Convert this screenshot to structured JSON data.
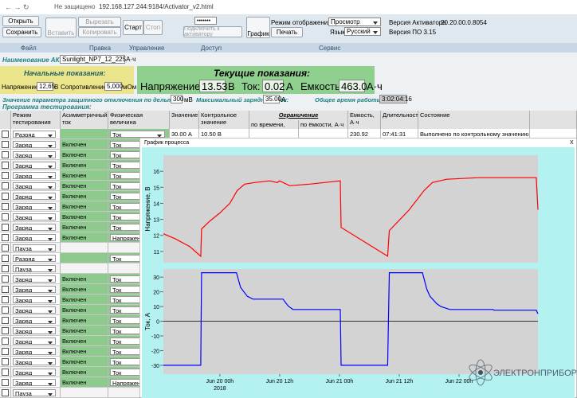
{
  "browser": {
    "security": "Не защищено",
    "url": "192.168.127.244:9184/Activator_v2.html"
  },
  "toolbar": {
    "open": "Открыть",
    "save": "Сохранить",
    "paste": "Вставить",
    "cut": "Вырезать",
    "copy": "Копировать",
    "start": "Старт",
    "stop": "Стоп",
    "password_mask": "•••••••",
    "connect": "Подключить к активатору",
    "graph": "График",
    "display_mode_label": "Режим отображения:",
    "display_mode": "Просмотр",
    "print": "Печать",
    "language_label": "Язык:",
    "language": "Русский",
    "activator_version_label": "Версия Активатора",
    "activator_version": "20.20.00.0.8054",
    "software_version": "Версия ПО 3.15"
  },
  "groups": [
    "Файл",
    "Правка",
    "Управление",
    "Доступ",
    "Сервис"
  ],
  "battery": {
    "label": "Наименование АКБ:",
    "value": "Sunlight_NP7_12_225А·ч"
  },
  "initial": {
    "title": "Начальные показания:",
    "voltage_label": "Напряжение:",
    "voltage": "12,65",
    "voltage_unit": "В",
    "resistance_label": "Сопротивление:",
    "resistance": "5,000",
    "resistance_unit": "мОм"
  },
  "current": {
    "title": "Текущие показания:",
    "voltage_label": "Напряжение:",
    "voltage": "13.53",
    "voltage_unit": "В",
    "current_label": "Ток:",
    "current": "0.02",
    "current_unit": "А",
    "capacity_label": "Емкость:",
    "capacity": "463.0",
    "capacity_unit": "А·ч"
  },
  "params": {
    "delta_v_label": "Значение параметра защитного отключения по дельта V:",
    "delta_v": "300",
    "delta_v_unit": "мВ",
    "max_current_label": "Максимальный зарядный ток:",
    "max_current": "35.00",
    "max_current_unit": "А",
    "total_time_label": "Общее время работы:",
    "total_time": "3:02:04:16"
  },
  "program_title": "Программа тестирования:",
  "table": {
    "headers": {
      "mode": "Режим тестирования",
      "asym": "Асимметричный ток",
      "quantity": "Физическая величина",
      "value": "Значение",
      "control": "Контрольное значение",
      "capacity": "Емкость, А·ч",
      "duration": "Длительность",
      "state": "Состояние"
    },
    "limit_header": "Ограничение",
    "limit_sub": [
      "по времени, мин.",
      "по ёмкости, А·ч"
    ],
    "rows": [
      {
        "mode": "Разряд",
        "quantity": "Ток",
        "value": "30.00 А",
        "control": "10.50 В",
        "capacity": "230.92",
        "duration": "07:41:31",
        "state": "Выполнено по контрольному значению"
      },
      {
        "mode": "Заряд",
        "asym": "Включен",
        "quantity": "Ток"
      },
      {
        "mode": "Заряд",
        "asym": "Включен",
        "quantity": "Ток"
      },
      {
        "mode": "Заряд",
        "asym": "Включен",
        "quantity": "Ток"
      },
      {
        "mode": "Заряд",
        "asym": "Включен",
        "quantity": "Ток"
      },
      {
        "mode": "Заряд",
        "asym": "Включен",
        "quantity": "Ток"
      },
      {
        "mode": "Заряд",
        "asym": "Включен",
        "quantity": "Ток"
      },
      {
        "mode": "Заряд",
        "asym": "Включен",
        "quantity": "Ток"
      },
      {
        "mode": "Заряд",
        "asym": "Включен",
        "quantity": "Ток"
      },
      {
        "mode": "Заряд",
        "asym": "Включен",
        "quantity": "Ток"
      },
      {
        "mode": "Заряд",
        "asym": "Включен",
        "quantity": "Напряжение"
      },
      {
        "mode": "Пауза"
      },
      {
        "mode": "Разряд",
        "quantity": "Ток"
      },
      {
        "mode": "Пауза"
      },
      {
        "mode": "Заряд",
        "asym": "Включен",
        "quantity": "Ток"
      },
      {
        "mode": "Заряд",
        "asym": "Включен",
        "quantity": "Ток"
      },
      {
        "mode": "Заряд",
        "asym": "Включен",
        "quantity": "Ток"
      },
      {
        "mode": "Заряд",
        "asym": "Включен",
        "quantity": "Ток"
      },
      {
        "mode": "Заряд",
        "asym": "Включен",
        "quantity": "Ток"
      },
      {
        "mode": "Заряд",
        "asym": "Включен",
        "quantity": "Ток"
      },
      {
        "mode": "Заряд",
        "asym": "Включен",
        "quantity": "Ток"
      },
      {
        "mode": "Заряд",
        "asym": "Включен",
        "quantity": "Ток"
      },
      {
        "mode": "Заряд",
        "asym": "Включен",
        "quantity": "Ток"
      },
      {
        "mode": "Заряд",
        "asym": "Включен",
        "quantity": "Ток"
      },
      {
        "mode": "Заряд",
        "asym": "Включен",
        "quantity": "Напряжение"
      },
      {
        "mode": "Пауза"
      }
    ]
  },
  "popup": {
    "title": "График процесса",
    "close": "X",
    "x_year": "2018",
    "charts": [
      {
        "type": "line",
        "ylabel": "Напряжение, В",
        "color": "#ff0000",
        "ylim": [
          10.3,
          17
        ],
        "yticks": [
          11,
          12,
          13,
          14,
          15,
          16
        ],
        "xlim": [
          "2018-06-19T12:40",
          "2018-06-22T15:50"
        ],
        "x": [
          "2018-06-19T12:40",
          "2018-06-19T15:00",
          "2018-06-19T18:00",
          "2018-06-19T20:10",
          "2018-06-19T20:20",
          "2018-06-19T22:00",
          "2018-06-20T00:00",
          "2018-06-20T02:00",
          "2018-06-20T03:30",
          "2018-06-20T05:00",
          "2018-06-20T07:00",
          "2018-06-20T10:00",
          "2018-06-20T11:30",
          "2018-06-20T12:00",
          "2018-06-20T14:00",
          "2018-06-20T18:00",
          "2018-06-20T21:00",
          "2018-06-21T00:10",
          "2018-06-21T00:20",
          "2018-06-21T05:00",
          "2018-06-21T09:40",
          "2018-06-21T10:00",
          "2018-06-21T14:00",
          "2018-06-21T17:00",
          "2018-06-21T18:40",
          "2018-06-21T21:30",
          "2018-06-22T04:00",
          "2018-06-22T15:30",
          "2018-06-22T15:50"
        ],
        "values": [
          12.1,
          11.8,
          11.3,
          10.7,
          12.4,
          12.9,
          13.4,
          14.0,
          14.8,
          15.2,
          15.3,
          15.4,
          15.3,
          15.4,
          15.1,
          15.2,
          15.3,
          15.4,
          12.5,
          11.6,
          10.7,
          12.3,
          13.6,
          14.8,
          15.3,
          15.5,
          15.6,
          15.6,
          13.6
        ]
      },
      {
        "type": "line",
        "ylabel": "Ток, А",
        "color": "#0000ff",
        "zeroline": true,
        "ylim": [
          -36,
          35.5
        ],
        "yticks": [
          -30,
          -20,
          -10,
          0,
          10,
          20,
          30
        ],
        "xlim": [
          "2018-06-19T12:40",
          "2018-06-22T15:50"
        ],
        "xticks": [
          {
            "value": "2018-06-20T00:00",
            "label": "Jun 20 00h"
          },
          {
            "value": "2018-06-20T12:00",
            "label": "Jun 20 12h"
          },
          {
            "value": "2018-06-21T00:00",
            "label": "Jun 21 00h"
          },
          {
            "value": "2018-06-21T12:00",
            "label": "Jun 21 12h"
          },
          {
            "value": "2018-06-22T00:00",
            "label": "Jun 22 00h"
          }
        ],
        "x": [
          "2018-06-19T12:40",
          "2018-06-19T20:10",
          "2018-06-19T20:20",
          "2018-06-20T03:20",
          "2018-06-20T04:10",
          "2018-06-20T05:30",
          "2018-06-20T06:40",
          "2018-06-20T12:40",
          "2018-06-20T13:20",
          "2018-06-20T13:50",
          "2018-06-20T14:40",
          "2018-06-21T00:10",
          "2018-06-21T00:20",
          "2018-06-21T09:40",
          "2018-06-21T10:00",
          "2018-06-21T16:40",
          "2018-06-21T17:30",
          "2018-06-21T18:10",
          "2018-06-21T19:30",
          "2018-06-21T20:20",
          "2018-06-21T22:10",
          "2018-06-22T06:50",
          "2018-06-22T07:00",
          "2018-06-22T15:30",
          "2018-06-22T15:50"
        ],
        "values": [
          -30,
          -30,
          33,
          33,
          23,
          17,
          15,
          15,
          12,
          10,
          8,
          8,
          -30,
          -30,
          33,
          33,
          22,
          17,
          12,
          10,
          8,
          8,
          7.5,
          7.5,
          5
        ]
      }
    ]
  },
  "logo": "ЭЛЕКТРОНПРИБОР"
}
